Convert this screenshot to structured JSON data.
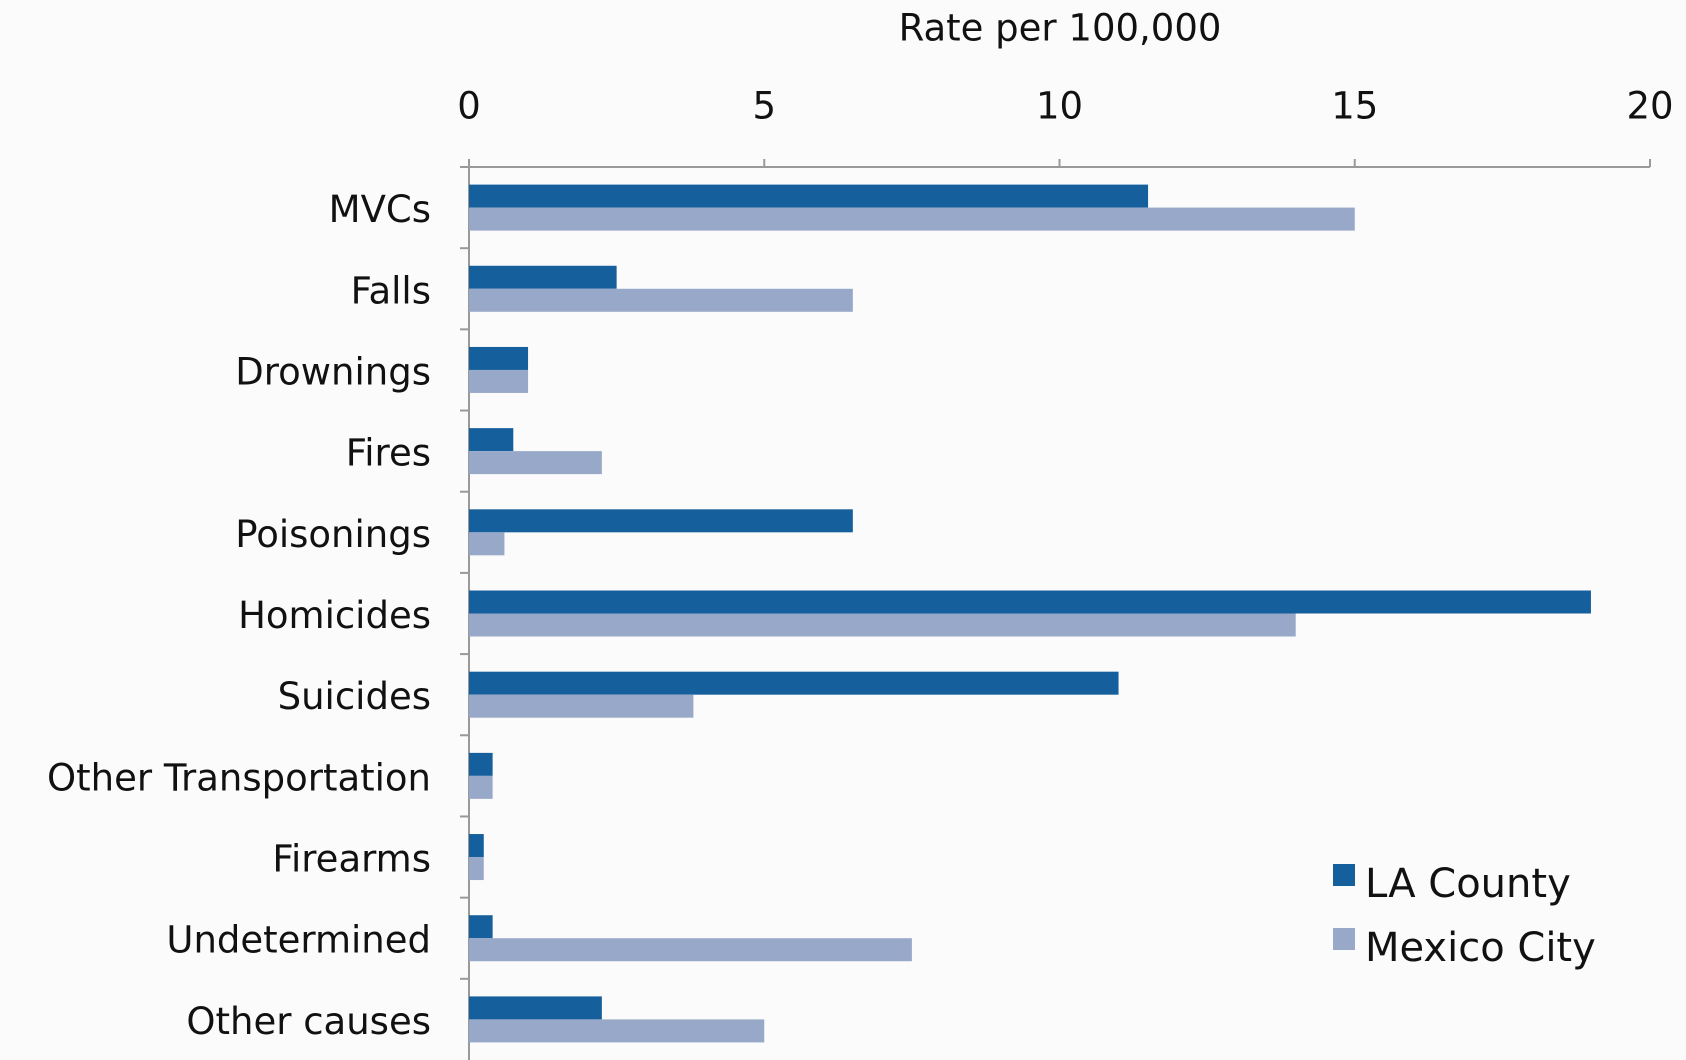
{
  "chart_data": {
    "type": "barh",
    "x_label": "Rate per 100,000",
    "categories": [
      "MVCs",
      "Falls",
      "Drownings",
      "Fires",
      "Poisonings",
      "Homicides",
      "Suicides",
      "Other Transportation",
      "Firearms",
      "Undetermined",
      "Other causes"
    ],
    "series": [
      {
        "name": "LA County",
        "color": "#155f9c",
        "values": [
          11.5,
          2.5,
          1.0,
          0.75,
          6.5,
          19.0,
          11.0,
          0.4,
          0.25,
          0.4,
          2.25
        ]
      },
      {
        "name": "Mexico City",
        "color": "#98a8c8",
        "values": [
          15.0,
          6.5,
          1.0,
          2.25,
          0.6,
          14.0,
          3.8,
          0.4,
          0.25,
          7.5,
          5.0
        ]
      }
    ],
    "xlim": [
      0,
      20
    ],
    "xticks": [
      0,
      5,
      10,
      15,
      20
    ],
    "legend": "lower right"
  }
}
